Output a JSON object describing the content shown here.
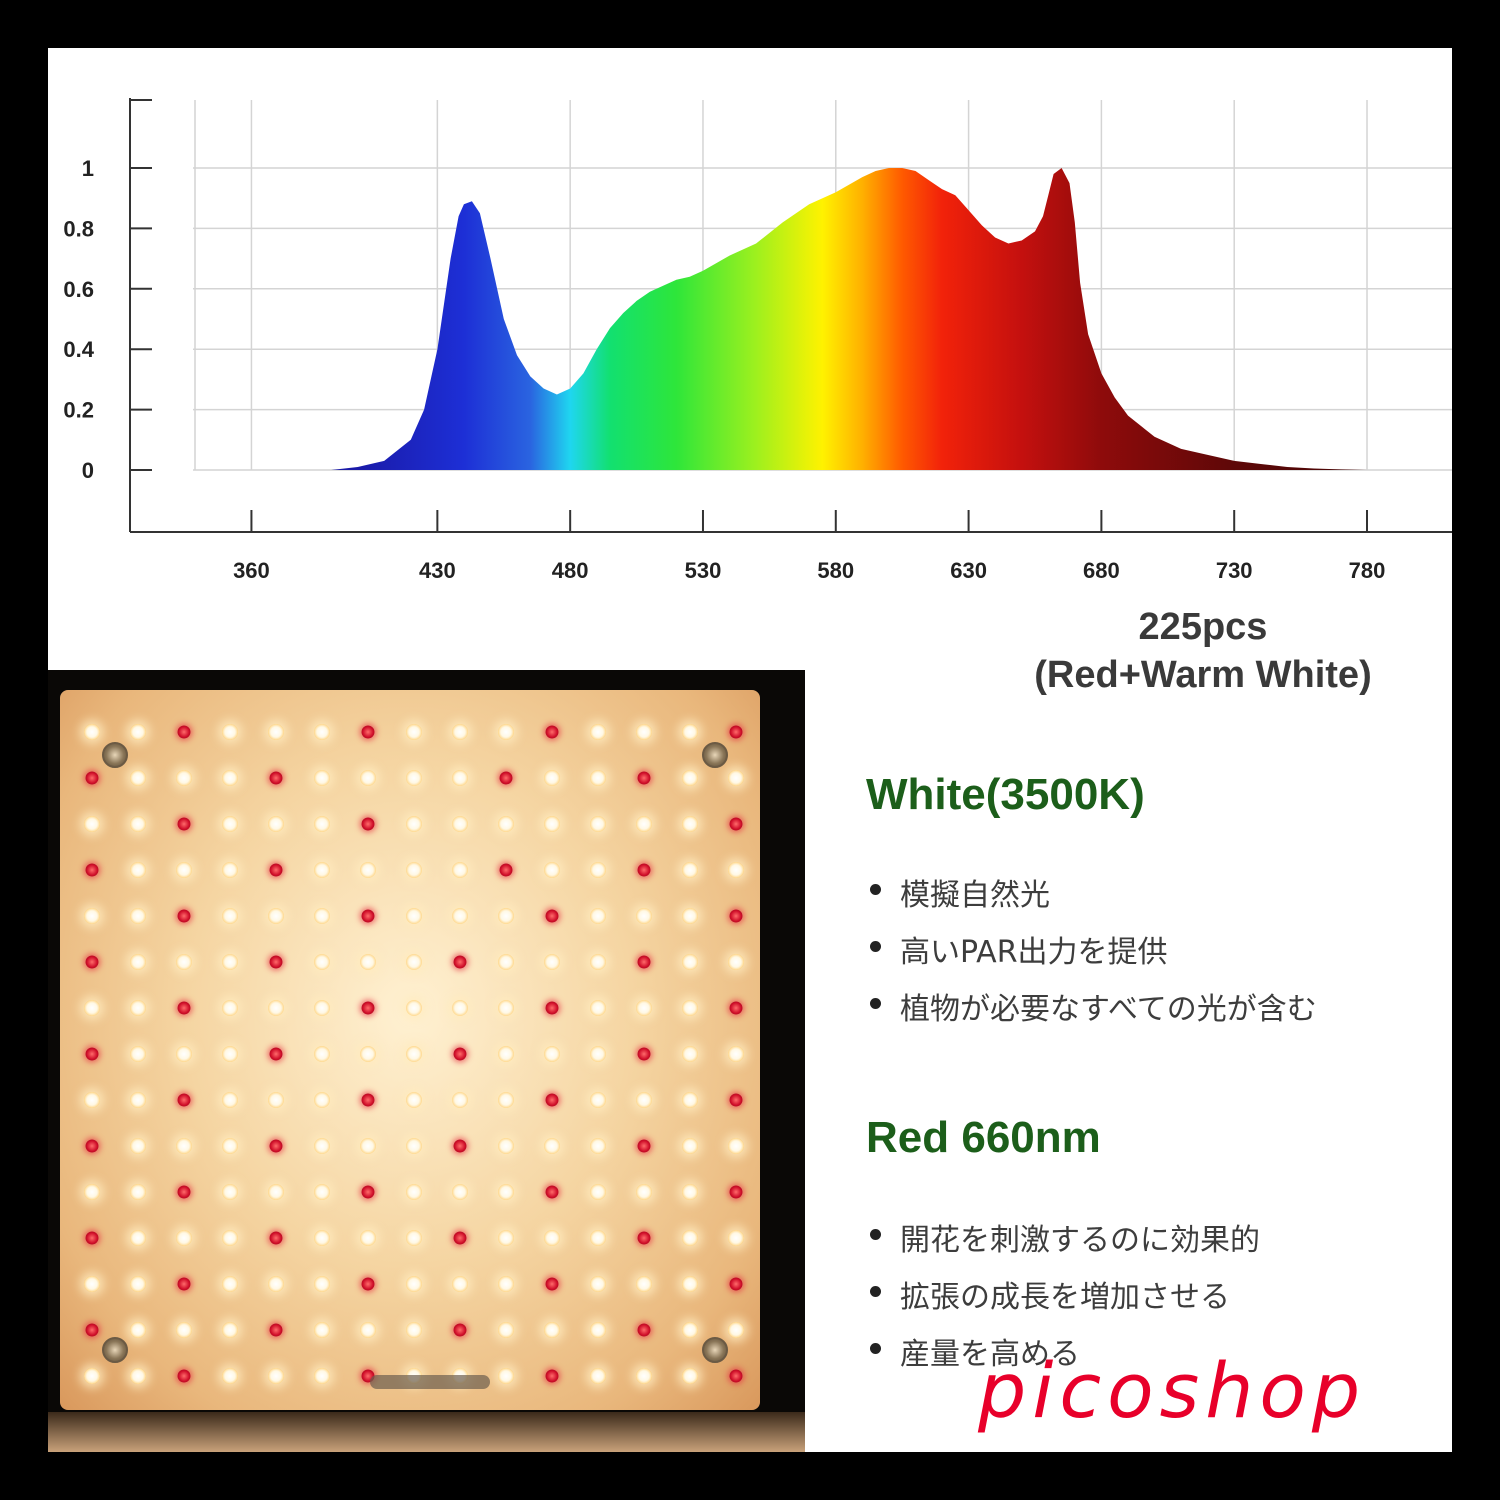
{
  "chart_data": {
    "type": "area",
    "title": "",
    "xlabel": "",
    "ylabel": "",
    "x_ticks": [
      "360",
      "430",
      "480",
      "530",
      "580",
      "630",
      "680",
      "730",
      "780"
    ],
    "y_ticks": [
      "0",
      "0.2",
      "0.4",
      "0.6",
      "0.8",
      "1"
    ],
    "xlim": [
      338,
      812
    ],
    "ylim": [
      0,
      1.2
    ],
    "grid": true,
    "series": [
      {
        "x": [
          390,
          400,
          410,
          420,
          425,
          430,
          435,
          438,
          440,
          443,
          446,
          450,
          455,
          460,
          465,
          470,
          475,
          480,
          485,
          490,
          495,
          500,
          505,
          510,
          515,
          520,
          525,
          530,
          540,
          550,
          560,
          570,
          580,
          590,
          595,
          600,
          605,
          610,
          615,
          620,
          625,
          630,
          635,
          640,
          645,
          650,
          655,
          658,
          660,
          662,
          665,
          668,
          670,
          672,
          675,
          680,
          685,
          690,
          700,
          710,
          720,
          730,
          740,
          750,
          760,
          770,
          780,
          790,
          800
        ],
        "y": [
          0.0,
          0.01,
          0.03,
          0.1,
          0.2,
          0.4,
          0.7,
          0.84,
          0.88,
          0.89,
          0.85,
          0.7,
          0.5,
          0.38,
          0.31,
          0.27,
          0.25,
          0.27,
          0.32,
          0.4,
          0.47,
          0.52,
          0.56,
          0.59,
          0.61,
          0.63,
          0.64,
          0.66,
          0.71,
          0.75,
          0.82,
          0.88,
          0.92,
          0.97,
          0.99,
          1.0,
          1.0,
          0.99,
          0.96,
          0.93,
          0.91,
          0.86,
          0.81,
          0.77,
          0.75,
          0.76,
          0.79,
          0.84,
          0.91,
          0.98,
          1.0,
          0.95,
          0.82,
          0.62,
          0.45,
          0.32,
          0.24,
          0.18,
          0.11,
          0.07,
          0.05,
          0.03,
          0.02,
          0.01,
          0.005,
          0.002,
          0.0,
          0.0,
          0.0
        ]
      }
    ]
  },
  "caption": {
    "line1": "225pcs",
    "line2": "(Red+Warm White)"
  },
  "sections": [
    {
      "title": "White(3500K)",
      "bullets": [
        "模擬自然光",
        "高いPAR出力を提供",
        "植物が必要なすべての光が含む"
      ]
    },
    {
      "title": "Red 660nm",
      "bullets": [
        "開花を刺激するのに効果的",
        "拡張の成長を増加させる",
        "産量を高める"
      ]
    }
  ],
  "led_panel": {
    "total_leds": 225,
    "red_positions": [
      [
        0,
        2
      ],
      [
        0,
        6
      ],
      [
        0,
        10
      ],
      [
        0,
        14
      ],
      [
        1,
        0
      ],
      [
        1,
        4
      ],
      [
        1,
        9
      ],
      [
        1,
        12
      ],
      [
        2,
        2
      ],
      [
        2,
        6
      ],
      [
        2,
        14
      ],
      [
        3,
        0
      ],
      [
        3,
        4
      ],
      [
        3,
        9
      ],
      [
        3,
        12
      ],
      [
        4,
        2
      ],
      [
        4,
        6
      ],
      [
        4,
        10
      ],
      [
        4,
        14
      ],
      [
        5,
        0
      ],
      [
        5,
        4
      ],
      [
        5,
        8
      ],
      [
        5,
        12
      ],
      [
        6,
        2
      ],
      [
        6,
        6
      ],
      [
        6,
        10
      ],
      [
        6,
        14
      ],
      [
        7,
        0
      ],
      [
        7,
        4
      ],
      [
        7,
        8
      ],
      [
        7,
        12
      ],
      [
        8,
        2
      ],
      [
        8,
        6
      ],
      [
        8,
        10
      ],
      [
        8,
        14
      ],
      [
        9,
        0
      ],
      [
        9,
        4
      ],
      [
        9,
        8
      ],
      [
        9,
        12
      ],
      [
        10,
        2
      ],
      [
        10,
        6
      ],
      [
        10,
        10
      ],
      [
        10,
        14
      ],
      [
        11,
        0
      ],
      [
        11,
        4
      ],
      [
        11,
        8
      ],
      [
        11,
        12
      ],
      [
        12,
        2
      ],
      [
        12,
        6
      ],
      [
        12,
        10
      ],
      [
        12,
        14
      ],
      [
        13,
        0
      ],
      [
        13,
        4
      ],
      [
        13,
        8
      ],
      [
        13,
        12
      ],
      [
        14,
        2
      ],
      [
        14,
        6
      ],
      [
        14,
        10
      ],
      [
        14,
        14
      ]
    ]
  },
  "colors": {
    "section_title": "#1c5e1a",
    "brand": "#e8002a",
    "red_led": "#d0102a"
  },
  "brand": "picoshop"
}
